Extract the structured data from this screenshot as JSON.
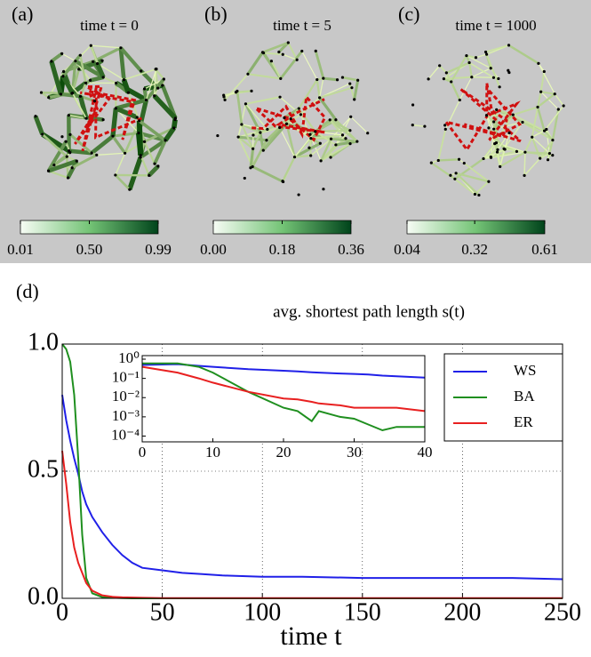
{
  "panels": [
    {
      "label": "(a)",
      "title": "time  t = 0",
      "colorbar": {
        "ticks": [
          {
            "value": 0.01,
            "label": "0.01"
          },
          {
            "value": 0.5,
            "label": "0.50"
          },
          {
            "value": 0.99,
            "label": "0.99"
          }
        ]
      }
    },
    {
      "label": "(b)",
      "title": "time t = 5",
      "colorbar": {
        "ticks": [
          {
            "value": 0,
            "label": "0.00"
          },
          {
            "value": 0.18,
            "label": "0.18"
          },
          {
            "value": 0.36,
            "label": "0.36"
          }
        ]
      }
    },
    {
      "label": "(c)",
      "title": "time  t = 1000",
      "colorbar": {
        "ticks": [
          {
            "value": 0.04,
            "label": "0.04"
          },
          {
            "value": 0.32,
            "label": "0.32"
          },
          {
            "value": 0.61,
            "label": "0.61"
          }
        ]
      }
    }
  ],
  "chart_data": {
    "type": "line",
    "label": "(d)",
    "title": "avg. shortest path length s(t)",
    "x_label": "time t",
    "x": [
      0,
      2,
      4,
      6,
      8,
      10,
      12,
      15,
      20,
      25,
      30,
      35,
      40,
      50,
      60,
      70,
      80,
      100,
      120,
      150,
      175,
      200,
      225,
      250
    ],
    "series": [
      {
        "name": "WS",
        "color": "#2020e8",
        "values": [
          0.8,
          0.7,
          0.62,
          0.55,
          0.49,
          0.42,
          0.37,
          0.32,
          0.26,
          0.21,
          0.17,
          0.14,
          0.12,
          0.11,
          0.1,
          0.095,
          0.09,
          0.085,
          0.085,
          0.08,
          0.08,
          0.08,
          0.08,
          0.075
        ]
      },
      {
        "name": "BA",
        "color": "#1f8f1f",
        "values": [
          1.0,
          0.98,
          0.93,
          0.8,
          0.55,
          0.25,
          0.08,
          0.02,
          0.005,
          0.002,
          0.001,
          0,
          0,
          0,
          0,
          0,
          0,
          0,
          0,
          0,
          0,
          0,
          0,
          0
        ]
      },
      {
        "name": "ER",
        "color": "#e82020",
        "values": [
          0.58,
          0.45,
          0.3,
          0.2,
          0.14,
          0.1,
          0.06,
          0.03,
          0.012,
          0.006,
          0.004,
          0.003,
          0.002,
          0.001,
          0.001,
          0.001,
          0.001,
          0.001,
          0.001,
          0.001,
          0.001,
          0.001,
          0.001,
          0.001
        ]
      }
    ],
    "xlim": [
      0,
      250
    ],
    "ylim": [
      0,
      1
    ],
    "xticks": [
      0,
      50,
      100,
      150,
      200,
      250
    ],
    "yticks": [
      {
        "value": 0,
        "label": "0.0"
      },
      {
        "value": 0.5,
        "label": "0.5"
      },
      {
        "value": 1,
        "label": "1.0"
      }
    ],
    "grid": true,
    "inset": {
      "type": "line",
      "log_y": true,
      "x": [
        0,
        5,
        8,
        10,
        15,
        20,
        22,
        24,
        25,
        28,
        30,
        32,
        34,
        36,
        40
      ],
      "series": [
        {
          "name": "WS",
          "color": "#2020e8",
          "values": [
            0.5,
            0.55,
            0.45,
            0.4,
            0.3,
            0.25,
            0.23,
            0.21,
            0.2,
            0.18,
            0.17,
            0.16,
            0.14,
            0.13,
            0.11
          ]
        },
        {
          "name": "BA",
          "color": "#1f8f1f",
          "values": [
            0.6,
            0.6,
            0.4,
            0.2,
            0.02,
            0.003,
            0.002,
            0.0006,
            0.002,
            0.001,
            0.0008,
            0.0004,
            0.0002,
            0.0003,
            0.0003
          ]
        },
        {
          "name": "ER",
          "color": "#e82020",
          "values": [
            0.4,
            0.2,
            0.1,
            0.06,
            0.02,
            0.009,
            0.008,
            0.006,
            0.005,
            0.004,
            0.003,
            0.003,
            0.003,
            0.003,
            0.002
          ]
        }
      ],
      "xlim": [
        0,
        40
      ],
      "ylim": [
        5e-05,
        1
      ],
      "xticks": [
        0,
        10,
        20,
        30,
        40
      ],
      "yticks": [
        {
          "value": 1,
          "label": "10⁰"
        },
        {
          "value": 0.1,
          "label": "10⁻¹"
        },
        {
          "value": 0.01,
          "label": "10⁻²"
        },
        {
          "value": 0.001,
          "label": "10⁻³"
        },
        {
          "value": 0.0001,
          "label": "10⁻⁴"
        }
      ]
    }
  }
}
